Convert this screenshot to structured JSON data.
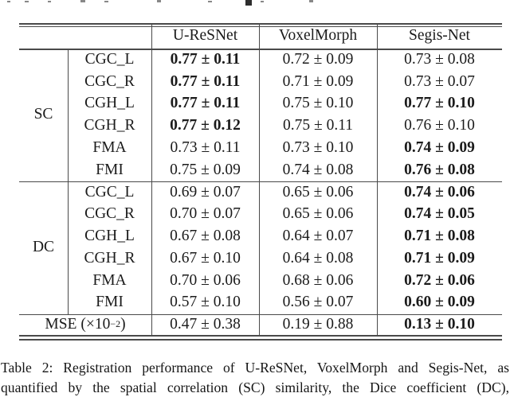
{
  "colors": {
    "text": "#1b1b1b",
    "rule": "#4a4a4a",
    "background": "#ffffff"
  },
  "table": {
    "col_headers": [
      "U-ReSNet",
      "VoxelMorph",
      "Segis-Net"
    ],
    "sections": [
      {
        "group": "SC",
        "rows": [
          {
            "tract": "CGC_L",
            "values": [
              "0.77 ± 0.11",
              "0.72 ± 0.09",
              "0.73 ± 0.08"
            ],
            "bold": [
              true,
              false,
              false
            ]
          },
          {
            "tract": "CGC_R",
            "values": [
              "0.77 ± 0.11",
              "0.71 ± 0.09",
              "0.73 ± 0.07"
            ],
            "bold": [
              true,
              false,
              false
            ]
          },
          {
            "tract": "CGH_L",
            "values": [
              "0.77 ± 0.11",
              "0.75 ± 0.10",
              "0.77 ± 0.10"
            ],
            "bold": [
              true,
              false,
              true
            ]
          },
          {
            "tract": "CGH_R",
            "values": [
              "0.77 ± 0.12",
              "0.75 ± 0.11",
              "0.76 ± 0.10"
            ],
            "bold": [
              true,
              false,
              false
            ]
          },
          {
            "tract": "FMA",
            "values": [
              "0.73 ± 0.11",
              "0.73 ± 0.10",
              "0.74 ± 0.09"
            ],
            "bold": [
              false,
              false,
              true
            ]
          },
          {
            "tract": "FMI",
            "values": [
              "0.75 ± 0.09",
              "0.74 ± 0.08",
              "0.76 ± 0.08"
            ],
            "bold": [
              false,
              false,
              true
            ]
          }
        ]
      },
      {
        "group": "DC",
        "rows": [
          {
            "tract": "CGC_L",
            "values": [
              "0.69 ± 0.07",
              "0.65 ± 0.06",
              "0.74 ± 0.06"
            ],
            "bold": [
              false,
              false,
              true
            ]
          },
          {
            "tract": "CGC_R",
            "values": [
              "0.70 ± 0.07",
              "0.65 ± 0.06",
              "0.74 ± 0.05"
            ],
            "bold": [
              false,
              false,
              true
            ]
          },
          {
            "tract": "CGH_L",
            "values": [
              "0.67 ± 0.08",
              "0.64 ± 0.07",
              "0.71 ± 0.08"
            ],
            "bold": [
              false,
              false,
              true
            ]
          },
          {
            "tract": "CGH_R",
            "values": [
              "0.67 ± 0.10",
              "0.64 ± 0.08",
              "0.71 ± 0.09"
            ],
            "bold": [
              false,
              false,
              true
            ]
          },
          {
            "tract": "FMA",
            "values": [
              "0.70 ± 0.06",
              "0.68 ± 0.06",
              "0.72 ± 0.06"
            ],
            "bold": [
              false,
              false,
              true
            ]
          },
          {
            "tract": "FMI",
            "values": [
              "0.57 ± 0.10",
              "0.56 ± 0.07",
              "0.60 ± 0.09"
            ],
            "bold": [
              false,
              false,
              true
            ]
          }
        ]
      }
    ],
    "footer": {
      "label_prefix": "MSE (×10",
      "label_sup": "−2",
      "label_suffix": ")",
      "values": [
        "0.47 ± 0.38",
        "0.19 ± 0.88",
        "0.13 ± 0.10"
      ],
      "bold": [
        false,
        false,
        true
      ]
    }
  },
  "caption": {
    "line1": "Table 2: Registration performance of U-ReSNet, VoxelMorph and Segis-Net, as",
    "line2": "quantified by the spatial correlation (SC) similarity, the Dice coefficient (DC),"
  }
}
